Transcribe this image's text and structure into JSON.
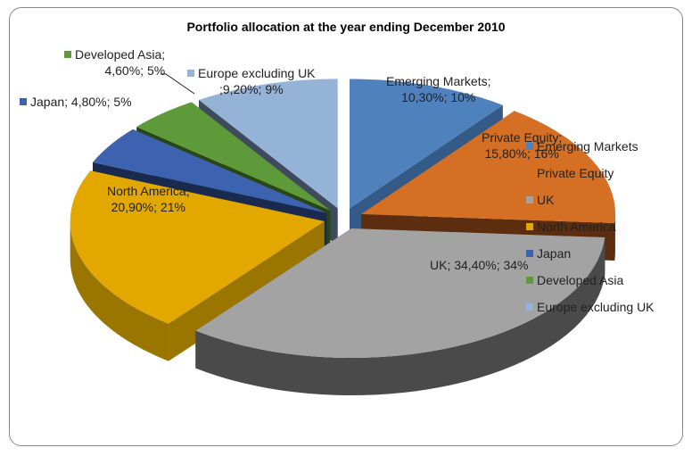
{
  "chart_data": {
    "type": "pie",
    "title": "Portfolio allocation at the year ending December 2010",
    "slices": [
      {
        "name": "Emerging Markets",
        "value": 10.3,
        "label": "Emerging Markets;",
        "label2": "10,30%; 10%",
        "color": "#4f81bd",
        "side": "#345a87"
      },
      {
        "name": "Private Equity",
        "value": 15.8,
        "label": "Private Equity;",
        "label2": "15,80%; 16%",
        "color": "#d46f24",
        "side": "#5c2d0e"
      },
      {
        "name": "UK",
        "value": 34.4,
        "label": "UK; 34,40%; 34%",
        "label2": "",
        "color": "#a3a3a3",
        "side": "#4a4a4a"
      },
      {
        "name": "North America",
        "value": 20.9,
        "label": "North America;",
        "label2": "20,90%; 21%",
        "color": "#e2a800",
        "side": "#9a7500"
      },
      {
        "name": "Japan",
        "value": 4.8,
        "label": "Japan; 4,80%; 5%",
        "label2": "",
        "color": "#3d63b0",
        "side": "#1a2a4e"
      },
      {
        "name": "Developed Asia",
        "value": 4.6,
        "label": "Developed Asia;",
        "label2": "4,60%; 5%",
        "color": "#5e9a39",
        "side": "#2a4516"
      },
      {
        "name": "Europe excluding UK",
        "value": 9.2,
        "label": "Europe excluding UK",
        "label2": ";9,20%; 9%",
        "color": "#95b3d7",
        "side": "#3d4b5c"
      }
    ],
    "legend_placement": "right"
  }
}
